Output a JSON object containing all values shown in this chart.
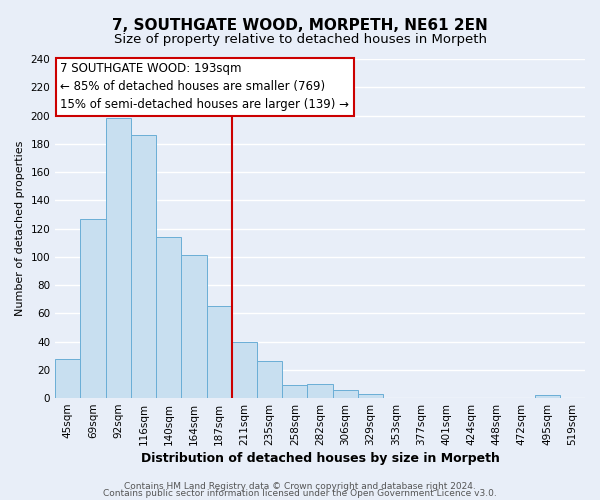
{
  "title": "7, SOUTHGATE WOOD, MORPETH, NE61 2EN",
  "subtitle": "Size of property relative to detached houses in Morpeth",
  "xlabel": "Distribution of detached houses by size in Morpeth",
  "ylabel": "Number of detached properties",
  "bin_labels": [
    "45sqm",
    "69sqm",
    "92sqm",
    "116sqm",
    "140sqm",
    "164sqm",
    "187sqm",
    "211sqm",
    "235sqm",
    "258sqm",
    "282sqm",
    "306sqm",
    "329sqm",
    "353sqm",
    "377sqm",
    "401sqm",
    "424sqm",
    "448sqm",
    "472sqm",
    "495sqm",
    "519sqm"
  ],
  "bar_heights": [
    28,
    127,
    198,
    186,
    114,
    101,
    65,
    40,
    26,
    9,
    10,
    6,
    3,
    0,
    0,
    0,
    0,
    0,
    0,
    2,
    0
  ],
  "bar_color": "#c8dff0",
  "bar_edge_color": "#6aaed6",
  "vline_x_idx": 6,
  "vline_color": "#cc0000",
  "annotation_line1": "7 SOUTHGATE WOOD: 193sqm",
  "annotation_line2": "← 85% of detached houses are smaller (769)",
  "annotation_line3": "15% of semi-detached houses are larger (139) →",
  "annotation_box_edgecolor": "#cc0000",
  "annotation_box_facecolor": "#ffffff",
  "ylim": [
    0,
    240
  ],
  "yticks": [
    0,
    20,
    40,
    60,
    80,
    100,
    120,
    140,
    160,
    180,
    200,
    220,
    240
  ],
  "footer_line1": "Contains HM Land Registry data © Crown copyright and database right 2024.",
  "footer_line2": "Contains public sector information licensed under the Open Government Licence v3.0.",
  "bg_color": "#e8eef8",
  "plot_bg_color": "#e8eef8",
  "grid_color": "#ffffff",
  "title_fontsize": 11,
  "subtitle_fontsize": 9.5,
  "ylabel_fontsize": 8,
  "xlabel_fontsize": 9,
  "tick_fontsize": 7.5,
  "annot_fontsize": 8.5,
  "footer_fontsize": 6.5
}
